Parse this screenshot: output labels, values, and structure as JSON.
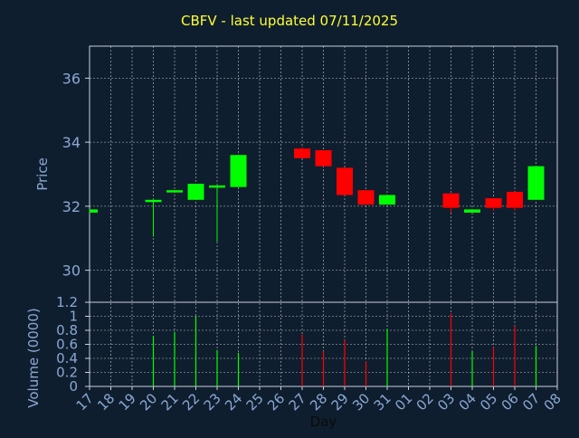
{
  "title": "CBFV - last updated 07/11/2025",
  "colors": {
    "background": "#0f1e2e",
    "axis": "#c8d0dc",
    "grid": "#ffffff",
    "label": "#8aa8d4",
    "up": "#00ff00",
    "down": "#ff0000",
    "title": "#ffff33"
  },
  "chart_data": [
    {
      "type": "candlestick",
      "ylabel": "Price",
      "ylim": [
        29,
        37
      ],
      "yticks": [
        "30",
        "32",
        "34",
        "36"
      ],
      "grid": true,
      "candles": [
        {
          "day": "17",
          "open": 31.8,
          "close": 31.9,
          "high": 31.9,
          "low": 31.8,
          "dir": "up"
        },
        {
          "day": "20",
          "open": 32.2,
          "close": 32.2,
          "high": 32.2,
          "low": 31.05,
          "dir": "up"
        },
        {
          "day": "21",
          "open": 32.45,
          "close": 32.5,
          "high": 32.5,
          "low": 32.45,
          "dir": "up"
        },
        {
          "day": "22",
          "open": 32.2,
          "close": 32.7,
          "high": 32.7,
          "low": 32.2,
          "dir": "up"
        },
        {
          "day": "23",
          "open": 32.6,
          "close": 32.65,
          "high": 32.65,
          "low": 30.9,
          "dir": "up"
        },
        {
          "day": "24",
          "open": 32.6,
          "close": 33.6,
          "high": 33.6,
          "low": 32.6,
          "dir": "up"
        },
        {
          "day": "27",
          "open": 33.8,
          "close": 33.5,
          "high": 33.85,
          "low": 33.5,
          "dir": "down"
        },
        {
          "day": "28",
          "open": 33.75,
          "close": 33.25,
          "high": 33.75,
          "low": 33.25,
          "dir": "down"
        },
        {
          "day": "29",
          "open": 33.2,
          "close": 32.35,
          "high": 33.2,
          "low": 32.35,
          "dir": "down"
        },
        {
          "day": "30",
          "open": 32.5,
          "close": 32.05,
          "high": 32.5,
          "low": 32.05,
          "dir": "down"
        },
        {
          "day": "31",
          "open": 32.05,
          "close": 32.35,
          "high": 32.35,
          "low": 32.05,
          "dir": "up"
        },
        {
          "day": "03",
          "open": 32.4,
          "close": 31.95,
          "high": 32.4,
          "low": 31.8,
          "dir": "down"
        },
        {
          "day": "04",
          "open": 31.8,
          "close": 31.9,
          "high": 31.9,
          "low": 31.8,
          "dir": "up"
        },
        {
          "day": "05",
          "open": 32.25,
          "close": 31.95,
          "high": 32.25,
          "low": 31.85,
          "dir": "down"
        },
        {
          "day": "06",
          "open": 32.45,
          "close": 31.95,
          "high": 32.45,
          "low": 31.85,
          "dir": "down"
        },
        {
          "day": "07",
          "open": 32.2,
          "close": 33.25,
          "high": 33.25,
          "low": 32.2,
          "dir": "up"
        }
      ]
    },
    {
      "type": "bar",
      "ylabel": "Volume (0000)",
      "xlabel": "Day",
      "ylim": [
        0,
        1.2
      ],
      "yticks": [
        "0",
        "0.2",
        "0.4",
        "0.6",
        "0.8",
        "1",
        "1.2"
      ],
      "categories": [
        "17",
        "18",
        "19",
        "20",
        "21",
        "22",
        "23",
        "24",
        "25",
        "26",
        "27",
        "28",
        "29",
        "30",
        "31",
        "01",
        "02",
        "03",
        "04",
        "05",
        "06",
        "07",
        "08"
      ],
      "values": [
        {
          "day": "20",
          "value": 0.72,
          "dir": "up"
        },
        {
          "day": "21",
          "value": 0.78,
          "dir": "up"
        },
        {
          "day": "22",
          "value": 1.0,
          "dir": "up"
        },
        {
          "day": "23",
          "value": 0.52,
          "dir": "up"
        },
        {
          "day": "24",
          "value": 0.48,
          "dir": "up"
        },
        {
          "day": "27",
          "value": 0.74,
          "dir": "down"
        },
        {
          "day": "28",
          "value": 0.5,
          "dir": "down"
        },
        {
          "day": "29",
          "value": 0.66,
          "dir": "down"
        },
        {
          "day": "30",
          "value": 0.36,
          "dir": "down"
        },
        {
          "day": "31",
          "value": 0.82,
          "dir": "up"
        },
        {
          "day": "03",
          "value": 1.04,
          "dir": "down"
        },
        {
          "day": "04",
          "value": 0.5,
          "dir": "up"
        },
        {
          "day": "05",
          "value": 0.56,
          "dir": "down"
        },
        {
          "day": "06",
          "value": 0.86,
          "dir": "down"
        },
        {
          "day": "07",
          "value": 0.58,
          "dir": "up"
        }
      ]
    }
  ]
}
